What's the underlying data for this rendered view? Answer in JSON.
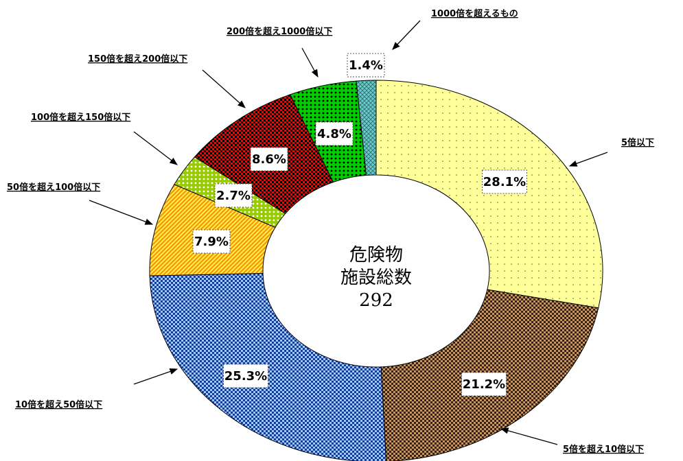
{
  "chart_data": {
    "type": "donut",
    "categories": [
      "5倍以下",
      "5倍を超え10倍以下",
      "10倍を超え50倍以下",
      "50倍を超え100倍以下",
      "100倍を超え150倍以下",
      "150倍を超え200倍以下",
      "200倍を超え1000倍以下",
      "1000倍を超えるもの"
    ],
    "values": [
      28.1,
      21.2,
      25.3,
      7.9,
      2.7,
      8.6,
      4.8,
      1.4
    ],
    "value_labels": [
      "28.1%",
      "21.2%",
      "25.3%",
      "7.9%",
      "2.7%",
      "8.6%",
      "4.8%",
      "1.4%"
    ],
    "colors": [
      "#ffff99",
      "#c8955a",
      "#99ccff",
      "#ff9900",
      "#99cc00",
      "#ff0000",
      "#00cc00",
      "#66cccc"
    ],
    "center_lines": [
      "危険物",
      "施設総数"
    ],
    "total": 292
  }
}
